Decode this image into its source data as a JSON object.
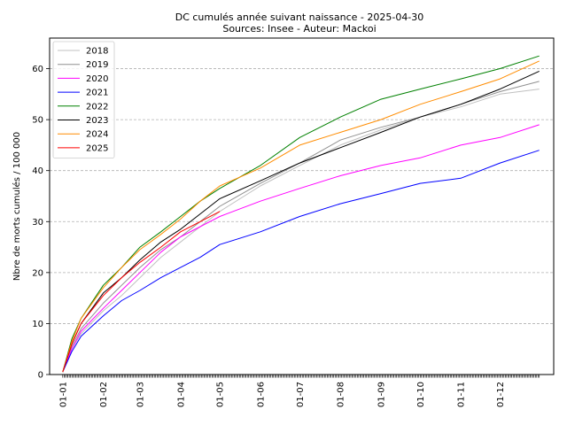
{
  "chart_data": {
    "type": "line",
    "title": "DC cumulés année suivant naissance  - 2025-04-30",
    "subtitle": "Sources: Insee - Auteur: Mackoi",
    "xlabel": "",
    "ylabel": "Nbre de morts cumulés / 100 000",
    "x_ticks": [
      "01-01",
      "01-02",
      "01-03",
      "01-04",
      "01-05",
      "01-06",
      "01-07",
      "01-08",
      "01-09",
      "01-10",
      "01-11",
      "01-12"
    ],
    "x_tick_days": [
      0,
      31,
      59,
      90,
      120,
      151,
      181,
      212,
      243,
      273,
      304,
      334
    ],
    "xlim": [
      -10,
      375
    ],
    "ylim": [
      0,
      66
    ],
    "y_ticks": [
      0,
      10,
      20,
      30,
      40,
      50,
      60
    ],
    "grid": "y-dashed",
    "legend_position": "top-left",
    "series": [
      {
        "name": "2018",
        "color": "#c0c0c0",
        "x": [
          0,
          7,
          14,
          31,
          45,
          59,
          75,
          90,
          105,
          120,
          151,
          181,
          212,
          243,
          273,
          304,
          334,
          364
        ],
        "y": [
          0.5,
          5,
          8,
          12.5,
          15.5,
          19,
          23,
          26,
          29,
          32,
          37,
          41,
          45,
          48,
          50.5,
          52.5,
          55,
          56
        ]
      },
      {
        "name": "2019",
        "color": "#909090",
        "x": [
          0,
          7,
          14,
          31,
          45,
          59,
          75,
          90,
          105,
          120,
          151,
          181,
          212,
          243,
          273,
          304,
          334,
          364
        ],
        "y": [
          0.5,
          5.5,
          9,
          14,
          17.5,
          21,
          24.5,
          27,
          30,
          33,
          37.5,
          41.5,
          46,
          48.5,
          50.5,
          53,
          55.5,
          57.5
        ]
      },
      {
        "name": "2020",
        "color": "#ff00ff",
        "x": [
          0,
          7,
          14,
          31,
          45,
          59,
          75,
          90,
          105,
          120,
          151,
          181,
          212,
          243,
          273,
          304,
          334,
          364
        ],
        "y": [
          0.5,
          5,
          8.5,
          13,
          16.5,
          20,
          24,
          27,
          29,
          31,
          34,
          36.5,
          39,
          41,
          42.5,
          45,
          46.5,
          49
        ]
      },
      {
        "name": "2021",
        "color": "#0000ff",
        "x": [
          0,
          7,
          14,
          31,
          45,
          59,
          75,
          90,
          105,
          120,
          151,
          181,
          212,
          243,
          273,
          304,
          334,
          364
        ],
        "y": [
          0.5,
          4.5,
          7.5,
          11.5,
          14.5,
          16.5,
          19,
          21,
          23,
          25.5,
          28,
          31,
          33.5,
          35.5,
          37.5,
          38.5,
          41.5,
          44
        ]
      },
      {
        "name": "2022",
        "color": "#008000",
        "x": [
          0,
          7,
          14,
          31,
          45,
          59,
          75,
          90,
          105,
          120,
          151,
          181,
          212,
          243,
          273,
          304,
          334,
          364
        ],
        "y": [
          0.5,
          7,
          11,
          17.5,
          21,
          25,
          28,
          31,
          34,
          36.5,
          41,
          46.5,
          50.5,
          54,
          56,
          58,
          60,
          62.5
        ]
      },
      {
        "name": "2023",
        "color": "#000000",
        "x": [
          0,
          7,
          14,
          31,
          45,
          59,
          75,
          90,
          105,
          120,
          151,
          181,
          212,
          243,
          273,
          304,
          334,
          364
        ],
        "y": [
          0.5,
          6,
          10,
          16,
          19,
          22.5,
          26,
          28.5,
          31.5,
          34.5,
          38,
          41.5,
          44.5,
          47.5,
          50.5,
          53,
          56,
          59.5
        ]
      },
      {
        "name": "2024",
        "color": "#ff8c00",
        "x": [
          0,
          7,
          14,
          31,
          45,
          59,
          75,
          90,
          105,
          120,
          151,
          181,
          212,
          243,
          273,
          304,
          334,
          364
        ],
        "y": [
          0.5,
          6.5,
          11,
          17,
          21,
          24.5,
          27.5,
          30.5,
          34,
          37,
          40.5,
          45,
          47.5,
          50,
          53,
          55.5,
          58,
          61.5
        ]
      },
      {
        "name": "2025",
        "color": "#ff0000",
        "x": [
          0,
          7,
          14,
          31,
          45,
          59,
          75,
          90,
          105,
          120
        ],
        "y": [
          0.5,
          6,
          10,
          15.5,
          19,
          22,
          25,
          28,
          30,
          32
        ]
      }
    ]
  }
}
